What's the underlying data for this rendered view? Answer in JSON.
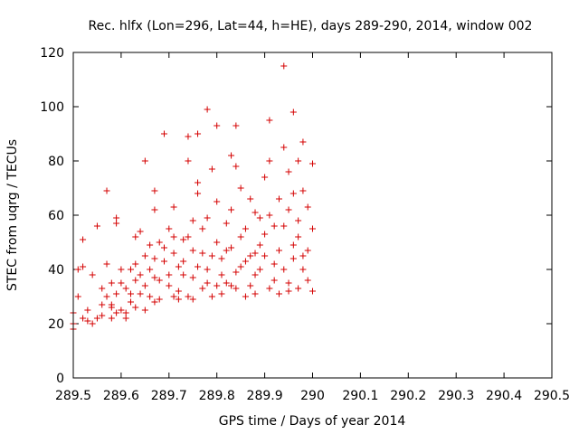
{
  "chart_data": {
    "type": "scatter",
    "title": "Rec. hlfx (Lon=296, Lat=44, h=HE), days 289-290, 2014, window 002",
    "xlabel": "GPS time / Days of year 2014",
    "ylabel": "STEC from uqrg / TECUs",
    "xlim": [
      289.5,
      290.5
    ],
    "ylim": [
      0,
      120
    ],
    "xticks": [
      {
        "value": 289.5,
        "label": "289.5"
      },
      {
        "value": 289.6,
        "label": "289.6"
      },
      {
        "value": 289.7,
        "label": "289.7"
      },
      {
        "value": 289.8,
        "label": "289.8"
      },
      {
        "value": 289.9,
        "label": "289.9"
      },
      {
        "value": 290.0,
        "label": "290"
      },
      {
        "value": 290.1,
        "label": "290.1"
      },
      {
        "value": 290.2,
        "label": "290.2"
      },
      {
        "value": 290.3,
        "label": "290.3"
      },
      {
        "value": 290.4,
        "label": "290.4"
      },
      {
        "value": 290.5,
        "label": "290.5"
      }
    ],
    "yticks": [
      {
        "value": 0,
        "label": "0"
      },
      {
        "value": 20,
        "label": "20"
      },
      {
        "value": 40,
        "label": "40"
      },
      {
        "value": 60,
        "label": "60"
      },
      {
        "value": 80,
        "label": "80"
      },
      {
        "value": 100,
        "label": "100"
      },
      {
        "value": 120,
        "label": "120"
      }
    ],
    "grid": false,
    "series": [
      {
        "name": "STEC",
        "color": "#d40000",
        "marker": "plus",
        "points": [
          [
            289.5,
            18
          ],
          [
            289.5,
            20
          ],
          [
            289.5,
            24
          ],
          [
            289.51,
            30
          ],
          [
            289.51,
            40
          ],
          [
            289.52,
            41
          ],
          [
            289.52,
            51
          ],
          [
            289.52,
            22
          ],
          [
            289.53,
            21
          ],
          [
            289.53,
            25
          ],
          [
            289.54,
            20
          ],
          [
            289.54,
            38
          ],
          [
            289.55,
            56
          ],
          [
            289.55,
            22
          ],
          [
            289.56,
            23
          ],
          [
            289.56,
            33
          ],
          [
            289.57,
            69
          ],
          [
            289.57,
            42
          ],
          [
            289.58,
            35
          ],
          [
            289.58,
            27
          ],
          [
            289.58,
            22
          ],
          [
            289.59,
            24
          ],
          [
            289.59,
            57
          ],
          [
            289.59,
            59
          ],
          [
            289.6,
            40
          ],
          [
            289.6,
            25
          ],
          [
            289.61,
            22
          ],
          [
            289.61,
            24
          ],
          [
            289.62,
            28
          ],
          [
            289.62,
            31
          ],
          [
            289.63,
            42
          ],
          [
            289.63,
            52
          ],
          [
            289.63,
            26
          ],
          [
            289.64,
            54
          ],
          [
            289.64,
            38
          ],
          [
            289.65,
            80
          ],
          [
            289.65,
            25
          ],
          [
            289.65,
            34
          ],
          [
            289.66,
            30
          ],
          [
            289.66,
            49
          ],
          [
            289.67,
            69
          ],
          [
            289.67,
            62
          ],
          [
            289.67,
            28
          ],
          [
            289.67,
            44
          ],
          [
            289.68,
            36
          ],
          [
            289.68,
            29
          ],
          [
            289.69,
            90
          ],
          [
            289.69,
            48
          ],
          [
            289.7,
            55
          ],
          [
            289.7,
            38
          ],
          [
            289.71,
            46
          ],
          [
            289.71,
            30
          ],
          [
            289.71,
            63
          ],
          [
            289.72,
            41
          ],
          [
            289.72,
            29
          ],
          [
            289.73,
            38
          ],
          [
            289.73,
            51
          ],
          [
            289.74,
            89
          ],
          [
            289.74,
            80
          ],
          [
            289.74,
            30
          ],
          [
            289.75,
            58
          ],
          [
            289.75,
            37
          ],
          [
            289.75,
            29
          ],
          [
            289.76,
            90
          ],
          [
            289.76,
            68
          ],
          [
            289.76,
            72
          ],
          [
            289.77,
            46
          ],
          [
            289.77,
            33
          ],
          [
            289.78,
            99
          ],
          [
            289.78,
            59
          ],
          [
            289.78,
            40
          ],
          [
            289.79,
            77
          ],
          [
            289.79,
            30
          ],
          [
            289.8,
            93
          ],
          [
            289.8,
            65
          ],
          [
            289.8,
            50
          ],
          [
            289.81,
            44
          ],
          [
            289.81,
            31
          ],
          [
            289.82,
            57
          ],
          [
            289.82,
            35
          ],
          [
            289.83,
            82
          ],
          [
            289.83,
            62
          ],
          [
            289.83,
            48
          ],
          [
            289.84,
            93
          ],
          [
            289.84,
            78
          ],
          [
            289.84,
            33
          ],
          [
            289.85,
            70
          ],
          [
            289.85,
            41
          ],
          [
            289.86,
            55
          ],
          [
            289.86,
            30
          ],
          [
            289.87,
            66
          ],
          [
            289.87,
            45
          ],
          [
            289.88,
            61
          ],
          [
            289.88,
            38
          ],
          [
            289.88,
            31
          ],
          [
            289.89,
            59
          ],
          [
            289.89,
            49
          ],
          [
            289.9,
            74
          ],
          [
            289.9,
            45
          ],
          [
            289.91,
            95
          ],
          [
            289.91,
            80
          ],
          [
            289.91,
            33
          ],
          [
            289.92,
            56
          ],
          [
            289.92,
            42
          ],
          [
            289.93,
            66
          ],
          [
            289.93,
            31
          ],
          [
            289.94,
            115
          ],
          [
            289.94,
            85
          ],
          [
            289.94,
            40
          ],
          [
            289.95,
            76
          ],
          [
            289.95,
            62
          ],
          [
            289.95,
            35
          ],
          [
            289.96,
            98
          ],
          [
            289.96,
            68
          ],
          [
            289.96,
            49
          ],
          [
            289.97,
            80
          ],
          [
            289.97,
            58
          ],
          [
            289.97,
            33
          ],
          [
            289.98,
            87
          ],
          [
            289.98,
            69
          ],
          [
            289.98,
            45
          ],
          [
            289.99,
            63
          ],
          [
            289.99,
            36
          ],
          [
            290.0,
            79
          ],
          [
            290.0,
            55
          ],
          [
            290.0,
            32
          ],
          [
            289.99,
            47
          ],
          [
            289.98,
            40
          ],
          [
            289.97,
            52
          ],
          [
            289.96,
            44
          ],
          [
            289.95,
            32
          ],
          [
            289.94,
            56
          ],
          [
            289.93,
            47
          ],
          [
            289.92,
            36
          ],
          [
            289.91,
            60
          ],
          [
            289.9,
            53
          ],
          [
            289.89,
            40
          ],
          [
            289.88,
            46
          ],
          [
            289.87,
            34
          ],
          [
            289.86,
            43
          ],
          [
            289.85,
            52
          ],
          [
            289.84,
            39
          ],
          [
            289.83,
            34
          ],
          [
            289.82,
            47
          ],
          [
            289.81,
            38
          ],
          [
            289.8,
            34
          ],
          [
            289.79,
            45
          ],
          [
            289.78,
            35
          ],
          [
            289.77,
            55
          ],
          [
            289.76,
            41
          ],
          [
            289.75,
            47
          ],
          [
            289.74,
            52
          ],
          [
            289.73,
            43
          ],
          [
            289.72,
            32
          ],
          [
            289.71,
            52
          ],
          [
            289.7,
            34
          ],
          [
            289.69,
            43
          ],
          [
            289.68,
            50
          ],
          [
            289.67,
            37
          ],
          [
            289.66,
            40
          ],
          [
            289.65,
            45
          ],
          [
            289.64,
            31
          ],
          [
            289.63,
            36
          ],
          [
            289.62,
            40
          ],
          [
            289.61,
            33
          ],
          [
            289.6,
            35
          ],
          [
            289.59,
            31
          ],
          [
            289.58,
            26
          ],
          [
            289.57,
            30
          ],
          [
            289.56,
            27
          ]
        ]
      }
    ]
  }
}
